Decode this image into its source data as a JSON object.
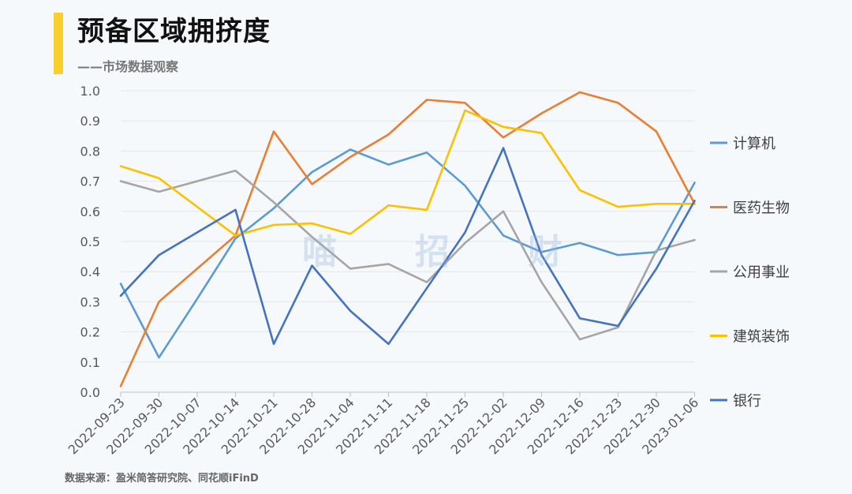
{
  "header": {
    "title": "预备区域拥挤度",
    "subtitle": "——市场数据观察"
  },
  "watermark": {
    "chars": [
      "喵",
      "招",
      "财"
    ]
  },
  "footer": {
    "source": "数据来源：盈米简答研究院、同花顺iFinD"
  },
  "chart_data": {
    "type": "line",
    "title": "预备区域拥挤度",
    "xlabel": "",
    "ylabel": "",
    "ylim": [
      0,
      1.0
    ],
    "yticks": [
      "0.0",
      "0.1",
      "0.2",
      "0.3",
      "0.4",
      "0.5",
      "0.6",
      "0.7",
      "0.8",
      "0.9",
      "1.0"
    ],
    "grid": true,
    "legend_position": "right",
    "categories": [
      "2022-09-23",
      "2022-09-30",
      "2022-10-07",
      "2022-10-14",
      "2022-10-21",
      "2022-10-28",
      "2022-11-04",
      "2022-11-11",
      "2022-11-18",
      "2022-11-25",
      "2022-12-02",
      "2022-12-09",
      "2022-12-16",
      "2022-12-23",
      "2022-12-30",
      "2023-01-06"
    ],
    "series": [
      {
        "name": "计算机",
        "color": "#5b9bd5",
        "values": [
          0.36,
          0.115,
          0.31,
          0.51,
          0.61,
          0.73,
          0.805,
          0.755,
          0.795,
          0.685,
          0.52,
          0.465,
          0.495,
          0.455,
          0.465,
          0.695
        ]
      },
      {
        "name": "医药生物",
        "color": "#ed7d31",
        "values": [
          0.02,
          0.3,
          0.41,
          0.52,
          0.865,
          0.69,
          0.78,
          0.855,
          0.97,
          0.96,
          0.845,
          0.925,
          0.995,
          0.96,
          0.865,
          0.625
        ]
      },
      {
        "name": "公用事业",
        "color": "#a5a5a5",
        "values": [
          0.7,
          0.665,
          0.7,
          0.735,
          0.63,
          0.515,
          0.41,
          0.425,
          0.365,
          0.495,
          0.6,
          0.365,
          0.175,
          0.215,
          0.47,
          0.505
        ]
      },
      {
        "name": "建筑装饰",
        "color": "#ffc000",
        "values": [
          0.75,
          0.71,
          0.615,
          0.52,
          0.555,
          0.56,
          0.525,
          0.62,
          0.605,
          0.935,
          0.88,
          0.86,
          0.67,
          0.615,
          0.625,
          0.625
        ]
      },
      {
        "name": "银行",
        "color": "#4472c4",
        "values": [
          0.32,
          0.455,
          0.53,
          0.605,
          0.16,
          0.42,
          0.27,
          0.16,
          0.345,
          0.53,
          0.81,
          0.455,
          0.245,
          0.22,
          0.41,
          0.635
        ]
      }
    ]
  }
}
